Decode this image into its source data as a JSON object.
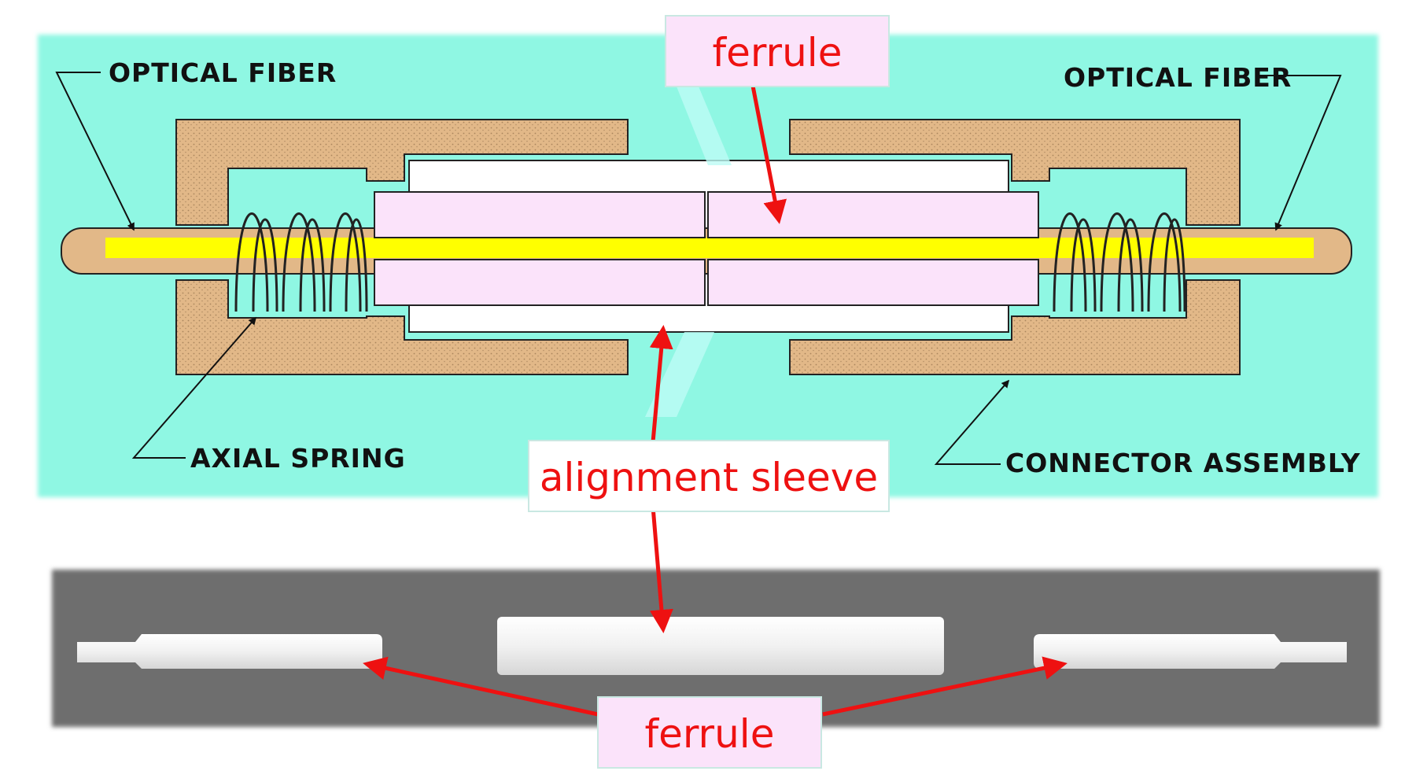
{
  "diagram": {
    "top_labels": {
      "optical_fiber_left": "OPTICAL FIBER",
      "optical_fiber_right": "OPTICAL FIBER",
      "axial_spring": "AXIAL SPRING",
      "connector_assembly": "CONNECTOR ASSEMBLY"
    },
    "callouts": {
      "ferrule_top": "ferrule",
      "alignment_sleeve": "alignment sleeve",
      "ferrule_bottom": "ferrule"
    }
  },
  "colors": {
    "top_panel_bg": "#8ff7e3",
    "bottom_panel_bg": "#6e6e6e",
    "housing": "#e2b888",
    "ferrule": "#fbe3fa",
    "fiber_core": "#ffff00",
    "fiber_jacket": "#e2b888",
    "callout_bg": "#fbe3fa",
    "callout_text": "#ee1111",
    "arrow": "#ee1111",
    "photo_part": "#f2f2f2"
  }
}
